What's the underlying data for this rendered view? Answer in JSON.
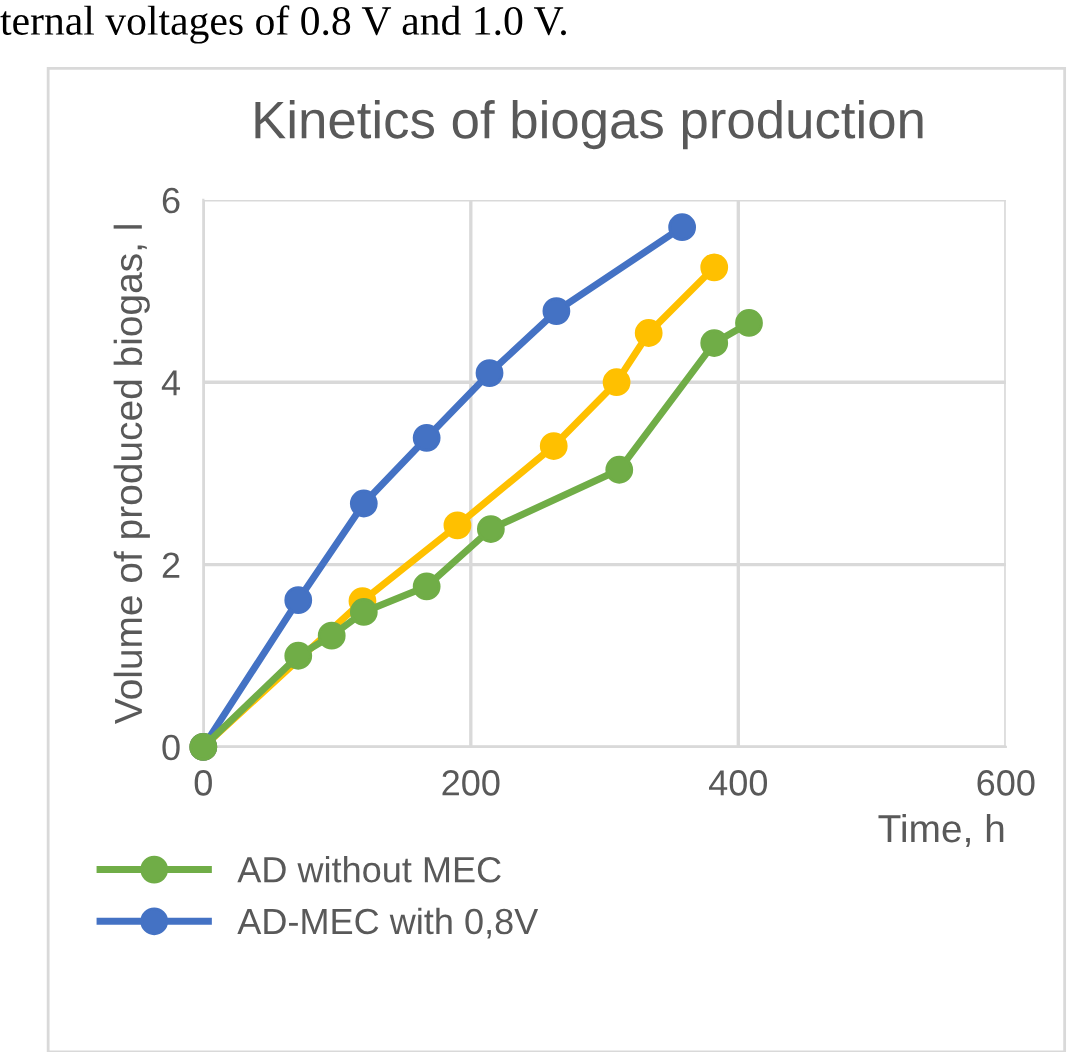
{
  "chart_data": {
    "type": "line",
    "title": "Kinetics of biogas production",
    "xlabel": "Time, h",
    "ylabel": "Volume of produced biogas, l",
    "annotations": [
      "ternal voltages of 0.8 V and 1.0 V."
    ],
    "xlim": [
      0,
      600
    ],
    "xticks": [
      0,
      200,
      400,
      600
    ],
    "ylim": [
      0,
      6
    ],
    "yticks": [
      0,
      2,
      4,
      6
    ],
    "grid": true,
    "legend": "bottom",
    "marker": "circle",
    "line_style": "solid",
    "series": [
      {
        "name": "AD without MEC",
        "color": "#70ad47",
        "x": [
          0,
          71,
          96,
          120,
          167,
          215,
          311,
          382,
          408
        ],
        "values": [
          0,
          1.0,
          1.22,
          1.48,
          1.76,
          2.39,
          3.04,
          4.43,
          4.65
        ]
      },
      {
        "name": "AD-MEC with 0,8V",
        "color": "#4472c4",
        "x": [
          0,
          71,
          120,
          167,
          214,
          264,
          358
        ],
        "values": [
          0,
          1.61,
          2.67,
          3.39,
          4.1,
          4.78,
          5.7
        ]
      },
      {
        "color": "#ffc000",
        "x": [
          0,
          119,
          190,
          262,
          309,
          333,
          382
        ],
        "values": [
          0,
          1.6,
          2.43,
          3.3,
          4.0,
          4.54,
          5.26
        ]
      }
    ]
  }
}
